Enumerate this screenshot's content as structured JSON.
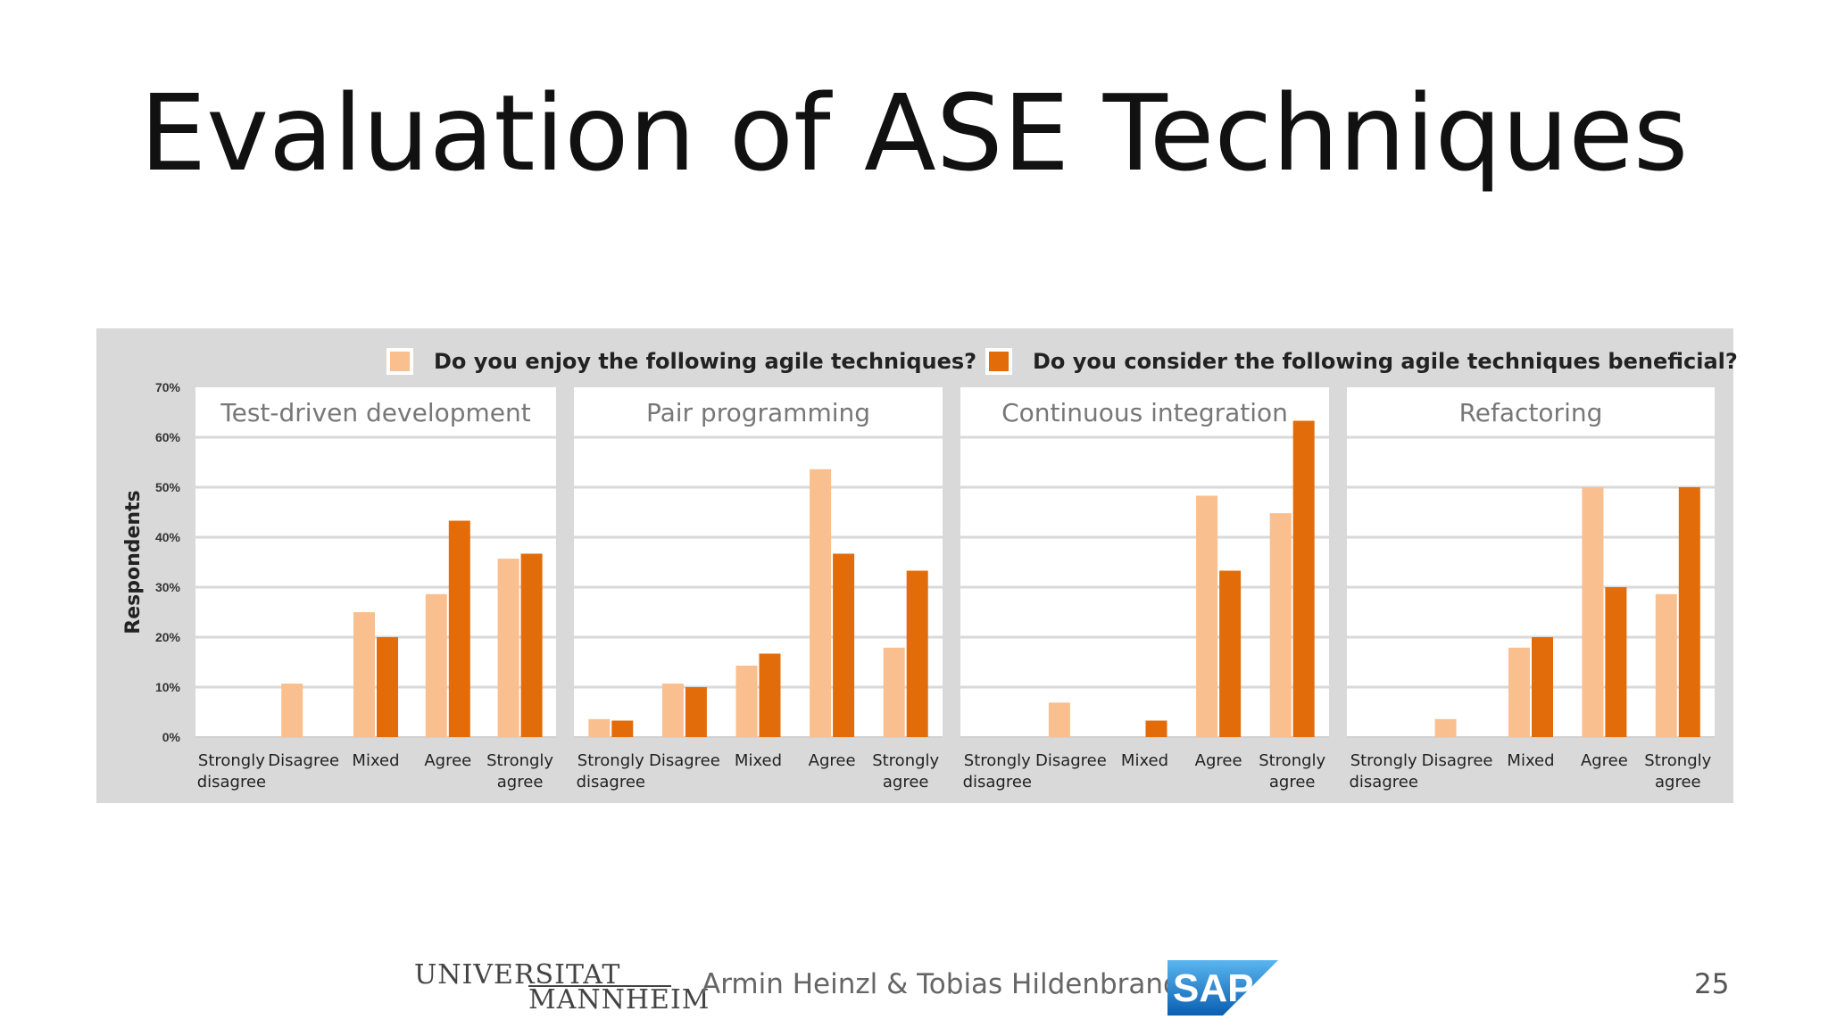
{
  "slide": {
    "title": "Evaluation of ASE Techniques",
    "footer_authors": "Armin Heinzl & Tobias Hildenbrand",
    "page_number": "25",
    "university_logo_top": "UNIVERSITAT",
    "university_logo_bottom": "MANNHEIM",
    "sap_logo_text": "SAP"
  },
  "chart_data": {
    "type": "bar",
    "ylabel": "Respondents",
    "ylim": [
      0,
      70
    ],
    "yticks": [
      "0%",
      "10%",
      "20%",
      "30%",
      "40%",
      "50%",
      "60%",
      "70%"
    ],
    "grid": true,
    "legend_position": "top",
    "colors": {
      "enjoy": "#f9bf8f",
      "beneficial": "#e36c0a",
      "background": "#d9d9d9",
      "panel": "#ffffff"
    },
    "legend": [
      {
        "name": "Do you enjoy the following agile techniques?",
        "color": "#f9bf8f"
      },
      {
        "name": "Do you consider the following agile techniques beneficial?",
        "color": "#e36c0a"
      }
    ],
    "categories": [
      [
        "Strongly",
        "disagree"
      ],
      [
        "Disagree"
      ],
      [
        "Mixed"
      ],
      [
        "Agree"
      ],
      [
        "Strongly",
        "agree"
      ]
    ],
    "panels": [
      {
        "title": "Test-driven development",
        "series": [
          {
            "values": [
              0,
              10.7,
              25,
              28.6,
              35.7
            ]
          },
          {
            "values": [
              0,
              0,
              20,
              43.3,
              36.7
            ]
          }
        ]
      },
      {
        "title": "Pair programming",
        "series": [
          {
            "values": [
              3.6,
              10.7,
              14.3,
              53.6,
              17.9
            ]
          },
          {
            "values": [
              3.3,
              10,
              16.7,
              36.7,
              33.3
            ]
          }
        ]
      },
      {
        "title": "Continuous integration",
        "series": [
          {
            "values": [
              0,
              6.9,
              0,
              48.3,
              44.8
            ]
          },
          {
            "values": [
              0,
              0,
              3.3,
              33.3,
              63.3
            ]
          }
        ]
      },
      {
        "title": "Refactoring",
        "series": [
          {
            "values": [
              0,
              3.6,
              17.9,
              50,
              28.6
            ]
          },
          {
            "values": [
              0,
              0,
              20,
              30,
              50
            ]
          }
        ]
      }
    ]
  }
}
